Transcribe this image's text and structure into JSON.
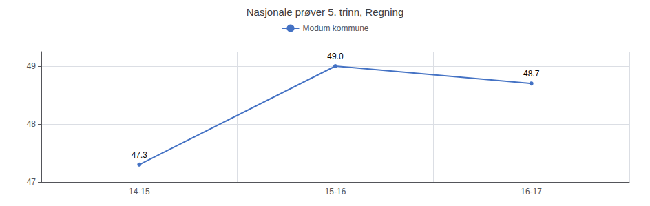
{
  "chart_data": {
    "type": "line",
    "title": "Nasjonale prøver 5. trinn, Regning",
    "categories": [
      "14-15",
      "15-16",
      "16-17"
    ],
    "series": [
      {
        "name": "Modum kommune",
        "color": "#4472C4",
        "marker": "circle",
        "values": [
          47.3,
          49.0,
          48.7
        ],
        "value_labels": [
          "47.3",
          "49.0",
          "48.7"
        ]
      }
    ],
    "ylim": [
      47.0,
      49.25
    ],
    "yticks": [
      47,
      48,
      49
    ],
    "grid": true,
    "legend": "top",
    "data_labels": true
  }
}
